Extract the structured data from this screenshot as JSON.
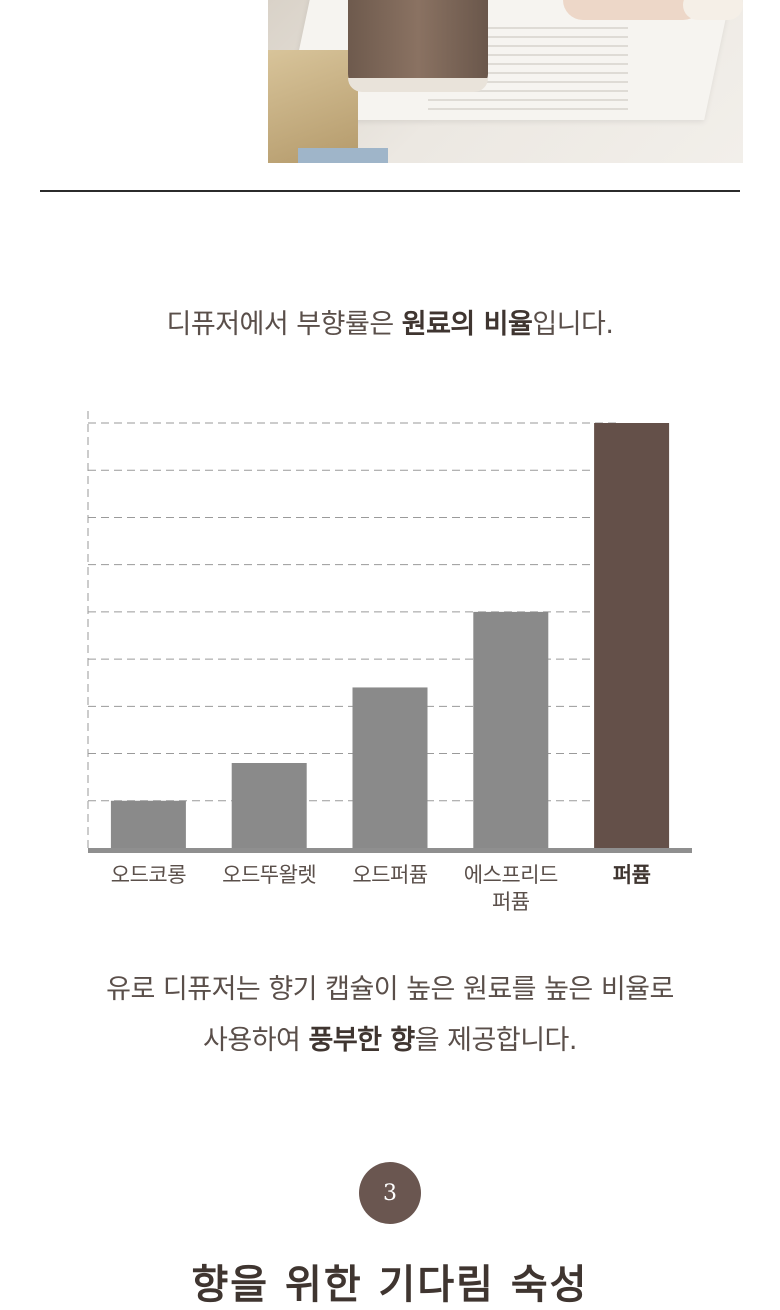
{
  "headline": {
    "part1": "디퓨저에서 부향률은 ",
    "bold": "원료의 비율",
    "part2": "입니다."
  },
  "chart_data": {
    "type": "bar",
    "categories": [
      "오드코롱",
      "오드뚜왈렛",
      "오드퍼퓸",
      "에스프리드\n퍼퓸",
      "퍼퓸"
    ],
    "values": [
      1,
      1.8,
      3.4,
      5,
      9
    ],
    "ylim": [
      0,
      9
    ],
    "grid": true,
    "highlight_category": "퍼퓸",
    "colors": {
      "bar": "#8a8a8a",
      "highlight": "#645049",
      "axis": "#8f8f8f"
    }
  },
  "paragraph": {
    "line1": "유로 디퓨저는 향기 캡슐이 높은 원료를 높은 비율로",
    "line2_pre": "사용하여 ",
    "line2_bold": "풍부한 향",
    "line2_post": "을 제공합니다."
  },
  "step_number": "3",
  "bottom_title": "향을 위한 기다림 숙성"
}
